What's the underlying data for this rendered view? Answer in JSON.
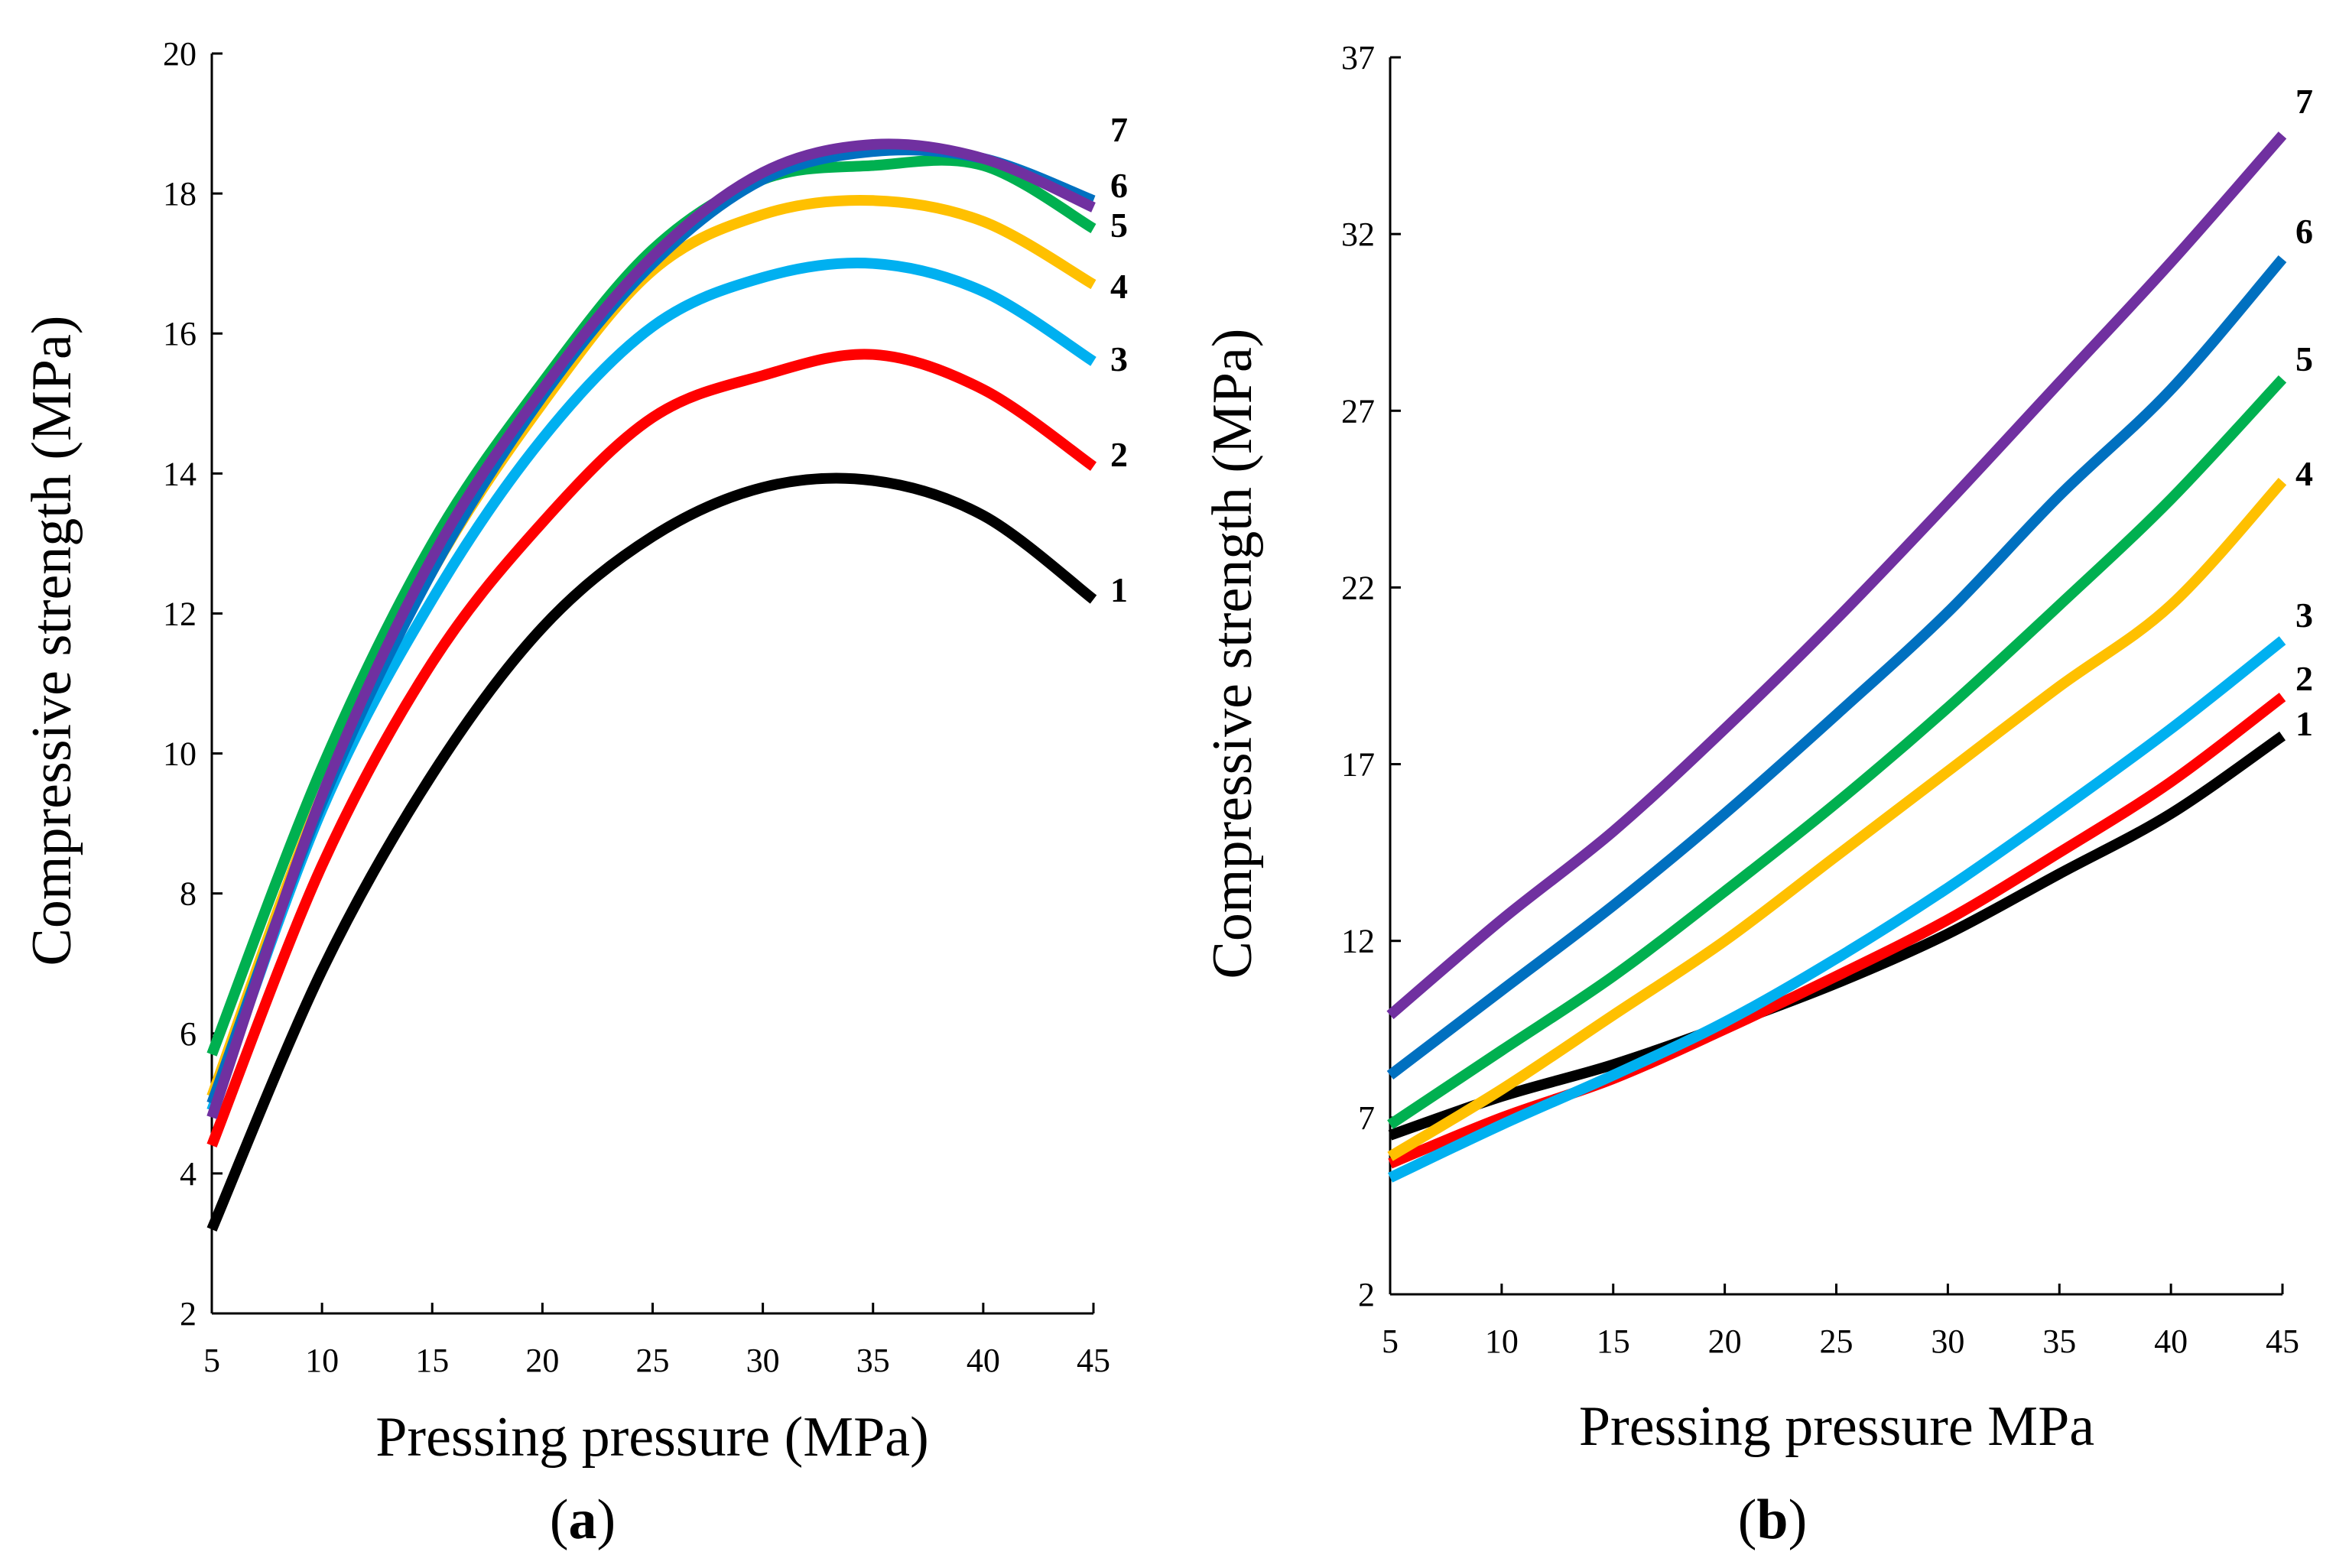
{
  "chart_data": [
    {
      "type": "line",
      "panel_label": "a",
      "xlabel": "Pressing pressure (MPa)",
      "ylabel": "Compressive strength (MPa)",
      "xlim": [
        5,
        45
      ],
      "ylim": [
        2,
        20
      ],
      "x_ticks": [
        "5",
        "10",
        "15",
        "20",
        "25",
        "30",
        "35",
        "40",
        "45"
      ],
      "y_ticks": [
        "2",
        "4",
        "6",
        "8",
        "10",
        "12",
        "14",
        "16",
        "18",
        "20"
      ],
      "x": [
        5,
        10,
        15,
        20,
        25,
        30,
        35,
        40,
        45
      ],
      "series": [
        {
          "name": "1",
          "color": "#000000",
          "values": [
            3.2,
            6.9,
            9.7,
            11.8,
            13.1,
            13.8,
            13.9,
            13.4,
            12.2
          ]
        },
        {
          "name": "2",
          "color": "#FF0000",
          "values": [
            4.4,
            8.4,
            11.3,
            13.3,
            14.8,
            15.4,
            15.7,
            15.2,
            14.1
          ]
        },
        {
          "name": "3",
          "color": "#00B0F0",
          "values": [
            4.9,
            9.2,
            12.2,
            14.5,
            16.1,
            16.8,
            17.0,
            16.6,
            15.6
          ]
        },
        {
          "name": "4",
          "color": "#FFC000",
          "values": [
            5.1,
            9.4,
            12.6,
            15.0,
            16.9,
            17.7,
            17.9,
            17.6,
            16.7
          ]
        },
        {
          "name": "5",
          "color": "#00B050",
          "values": [
            5.7,
            9.8,
            13.0,
            15.3,
            17.2,
            18.2,
            18.4,
            18.4,
            17.5
          ]
        },
        {
          "name": "6",
          "color": "#0070C0",
          "values": [
            5.0,
            9.3,
            12.6,
            15.1,
            17.0,
            18.2,
            18.6,
            18.5,
            17.9
          ]
        },
        {
          "name": "7",
          "color": "#7030A0",
          "values": [
            4.8,
            9.4,
            12.8,
            15.2,
            17.1,
            18.3,
            18.7,
            18.5,
            17.8
          ]
        }
      ],
      "end_labels": [
        "1",
        "2",
        "3",
        "4",
        "5",
        "6",
        "7"
      ]
    },
    {
      "type": "line",
      "panel_label": "b",
      "xlabel": "Pressing pressure MPa",
      "ylabel": "Compressive strength (MPa)",
      "xlim": [
        5,
        45
      ],
      "ylim": [
        2,
        37
      ],
      "x_ticks": [
        "5",
        "10",
        "15",
        "20",
        "25",
        "30",
        "35",
        "40",
        "45"
      ],
      "y_ticks": [
        "2",
        "7",
        "12",
        "17",
        "22",
        "27",
        "32",
        "37"
      ],
      "x": [
        5,
        10,
        15,
        20,
        25,
        30,
        35,
        40,
        45
      ],
      "series": [
        {
          "name": "1",
          "color": "#000000",
          "values": [
            6.5,
            7.6,
            8.5,
            9.6,
            10.8,
            12.2,
            13.9,
            15.6,
            17.8
          ]
        },
        {
          "name": "2",
          "color": "#FF0000",
          "values": [
            5.7,
            7.0,
            8.1,
            9.5,
            11.0,
            12.6,
            14.5,
            16.5,
            18.9
          ]
        },
        {
          "name": "3",
          "color": "#00B0F0",
          "values": [
            5.3,
            6.8,
            8.2,
            9.7,
            11.5,
            13.5,
            15.7,
            18.0,
            20.5
          ]
        },
        {
          "name": "4",
          "color": "#FFC000",
          "values": [
            5.9,
            7.8,
            9.9,
            12.0,
            14.4,
            16.8,
            19.2,
            21.5,
            25.0
          ]
        },
        {
          "name": "5",
          "color": "#00B050",
          "values": [
            6.8,
            8.9,
            11.0,
            13.4,
            15.9,
            18.6,
            21.5,
            24.5,
            27.9
          ]
        },
        {
          "name": "6",
          "color": "#0070C0",
          "values": [
            8.2,
            10.6,
            13.0,
            15.6,
            18.4,
            21.3,
            24.6,
            27.6,
            31.3
          ]
        },
        {
          "name": "7",
          "color": "#7030A0",
          "values": [
            9.9,
            12.6,
            15.1,
            18.0,
            21.1,
            24.4,
            27.8,
            31.2,
            34.8
          ]
        }
      ],
      "end_labels": [
        "1",
        "2",
        "3",
        "4",
        "5",
        "6",
        "7"
      ]
    }
  ]
}
